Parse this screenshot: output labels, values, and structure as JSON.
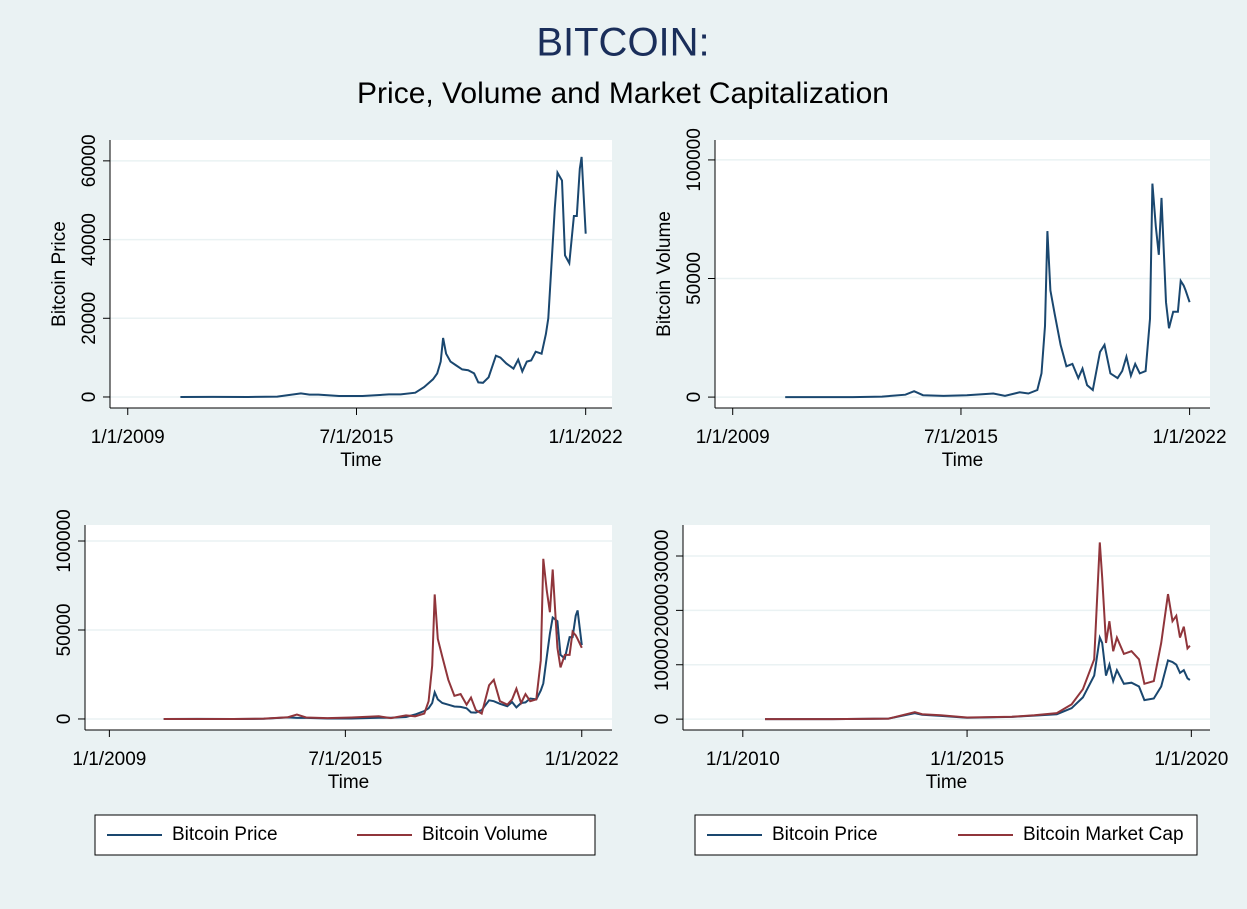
{
  "title": "BITCOIN:",
  "subtitle": "Price, Volume and Market Capitalization",
  "chart_data": [
    {
      "type": "line",
      "ylabel": "Bitcoin Price",
      "xlabel": "Time",
      "x": [
        "2010-07-01",
        "2011-06-01",
        "2012-06-01",
        "2013-04-01",
        "2013-12-01",
        "2014-03-01",
        "2014-06-01",
        "2015-01-01",
        "2015-09-01",
        "2016-06-01",
        "2016-10-01",
        "2017-03-01",
        "2017-06-01",
        "2017-09-01",
        "2017-10-15",
        "2017-11-20",
        "2017-12-15",
        "2018-01-15",
        "2018-03-01",
        "2018-05-01",
        "2018-07-01",
        "2018-09-01",
        "2018-11-01",
        "2018-12-15",
        "2019-02-01",
        "2019-04-01",
        "2019-06-15",
        "2019-08-01",
        "2019-10-01",
        "2019-12-15",
        "2020-02-01",
        "2020-03-15",
        "2020-05-01",
        "2020-06-15",
        "2020-08-01",
        "2020-10-01",
        "2020-11-15",
        "2020-12-10",
        "2021-01-15",
        "2021-02-15",
        "2021-03-15",
        "2021-05-01",
        "2021-06-01",
        "2021-07-15",
        "2021-09-01",
        "2021-10-01",
        "2021-11-01",
        "2021-11-20",
        "2022-01-01"
      ],
      "series": [
        {
          "color": "#1a476f",
          "values": [
            0,
            15,
            6,
            100,
            900,
            600,
            600,
            250,
            250,
            650,
            650,
            1100,
            2500,
            4500,
            6000,
            9000,
            15000,
            11000,
            9000,
            8000,
            7000,
            6800,
            6000,
            3700,
            3600,
            5000,
            10500,
            10000,
            8500,
            7200,
            9500,
            6500,
            9000,
            9300,
            11500,
            11000,
            16000,
            20000,
            35000,
            48000,
            57000,
            55000,
            36000,
            34000,
            46000,
            46000,
            58000,
            61000,
            41500
          ]
        }
      ],
      "xlim": [
        "2008-07-01",
        "2022-10-01"
      ],
      "xticks": [
        {
          "value": "2009-01-01",
          "label": "1/1/2009"
        },
        {
          "value": "2015-07-01",
          "label": "7/1/2015"
        },
        {
          "value": "2022-01-01",
          "label": "1/1/2022"
        }
      ],
      "ylim": [
        -2800,
        65300
      ],
      "yticks": [
        0,
        20000,
        40000,
        60000
      ],
      "grid": true
    },
    {
      "type": "line",
      "ylabel": "Bitcoin Volume",
      "xlabel": "Time",
      "x": [
        "2010-07-01",
        "2011-06-01",
        "2012-06-01",
        "2013-04-01",
        "2013-12-01",
        "2014-03-01",
        "2014-06-01",
        "2015-01-01",
        "2015-09-01",
        "2016-06-01",
        "2016-10-01",
        "2017-03-01",
        "2017-06-01",
        "2017-09-01",
        "2017-10-15",
        "2017-11-20",
        "2017-12-15",
        "2018-01-15",
        "2018-03-01",
        "2018-05-01",
        "2018-07-01",
        "2018-09-01",
        "2018-11-01",
        "2018-12-15",
        "2019-02-01",
        "2019-04-01",
        "2019-06-15",
        "2019-08-01",
        "2019-10-01",
        "2019-12-15",
        "2020-02-01",
        "2020-03-15",
        "2020-05-01",
        "2020-06-15",
        "2020-08-01",
        "2020-10-01",
        "2020-11-15",
        "2020-12-10",
        "2021-01-15",
        "2021-02-15",
        "2021-03-15",
        "2021-05-01",
        "2021-06-01",
        "2021-07-15",
        "2021-09-01",
        "2021-10-01",
        "2021-11-01",
        "2021-11-20",
        "2022-01-01"
      ],
      "series": [
        {
          "color": "#1a476f",
          "values": [
            0,
            0,
            0,
            200,
            1000,
            2500,
            800,
            500,
            800,
            1500,
            500,
            2000,
            1500,
            3000,
            10000,
            30000,
            70000,
            45000,
            35000,
            22000,
            13000,
            14000,
            8000,
            12000,
            5000,
            3000,
            19000,
            22000,
            10000,
            8000,
            11000,
            17000,
            9000,
            14000,
            10000,
            11000,
            33000,
            90000,
            72000,
            60000,
            84000,
            40000,
            29000,
            36000,
            36000,
            49000,
            47000,
            45000,
            40000
          ]
        }
      ],
      "xlim": [
        "2008-07-01",
        "2022-08-01"
      ],
      "xticks": [
        {
          "value": "2009-01-01",
          "label": "1/1/2009"
        },
        {
          "value": "2015-07-01",
          "label": "7/1/2015"
        },
        {
          "value": "2022-01-01",
          "label": "1/1/2022"
        }
      ],
      "ylim": [
        -4600,
        108400
      ],
      "yticks": [
        0,
        50000,
        100000
      ],
      "grid": true
    },
    {
      "type": "line",
      "xlabel": "Time",
      "legend": "bottom",
      "x": [
        "2010-07-01",
        "2011-06-01",
        "2012-06-01",
        "2013-04-01",
        "2013-12-01",
        "2014-03-01",
        "2014-06-01",
        "2015-01-01",
        "2015-09-01",
        "2016-06-01",
        "2016-10-01",
        "2017-03-01",
        "2017-06-01",
        "2017-09-01",
        "2017-10-15",
        "2017-11-20",
        "2017-12-15",
        "2018-01-15",
        "2018-03-01",
        "2018-05-01",
        "2018-07-01",
        "2018-09-01",
        "2018-11-01",
        "2018-12-15",
        "2019-02-01",
        "2019-04-01",
        "2019-06-15",
        "2019-08-01",
        "2019-10-01",
        "2019-12-15",
        "2020-02-01",
        "2020-03-15",
        "2020-05-01",
        "2020-06-15",
        "2020-08-01",
        "2020-10-01",
        "2020-11-15",
        "2020-12-10",
        "2021-01-15",
        "2021-02-15",
        "2021-03-15",
        "2021-05-01",
        "2021-06-01",
        "2021-07-15",
        "2021-09-01",
        "2021-10-01",
        "2021-11-01",
        "2021-11-20",
        "2022-01-01"
      ],
      "series": [
        {
          "name": "Bitcoin Price",
          "color": "#1a476f",
          "values": [
            0,
            15,
            6,
            100,
            900,
            600,
            600,
            250,
            250,
            650,
            650,
            1100,
            2500,
            4500,
            6000,
            9000,
            15000,
            11000,
            9000,
            8000,
            7000,
            6800,
            6000,
            3700,
            3600,
            5000,
            10500,
            10000,
            8500,
            7200,
            9500,
            6500,
            9000,
            9300,
            11500,
            11000,
            16000,
            20000,
            35000,
            48000,
            57000,
            55000,
            36000,
            34000,
            46000,
            46000,
            58000,
            61000,
            41500
          ]
        },
        {
          "name": "Bitcoin Volume",
          "color": "#90353b",
          "values": [
            0,
            0,
            0,
            200,
            1000,
            2500,
            800,
            500,
            800,
            1500,
            500,
            2000,
            1500,
            3000,
            10000,
            30000,
            70000,
            45000,
            35000,
            22000,
            13000,
            14000,
            8000,
            12000,
            5000,
            3000,
            19000,
            22000,
            10000,
            8000,
            11000,
            17000,
            9000,
            14000,
            10000,
            11000,
            33000,
            90000,
            72000,
            60000,
            84000,
            40000,
            29000,
            36000,
            36000,
            49000,
            47000,
            45000,
            40000
          ]
        }
      ],
      "xlim": [
        "2008-05-01",
        "2022-11-01"
      ],
      "xticks": [
        {
          "value": "2009-01-01",
          "label": "1/1/2009"
        },
        {
          "value": "2015-07-01",
          "label": "7/1/2015"
        },
        {
          "value": "2022-01-01",
          "label": "1/1/2022"
        }
      ],
      "ylim": [
        -6200,
        109000
      ],
      "yticks": [
        0,
        50000,
        100000
      ],
      "grid": true
    },
    {
      "type": "line",
      "xlabel": "Time",
      "legend": "bottom",
      "x": [
        "2010-07-01",
        "2012-01-01",
        "2013-04-01",
        "2013-11-01",
        "2014-01-01",
        "2014-06-01",
        "2015-01-01",
        "2016-01-01",
        "2016-07-01",
        "2017-01-01",
        "2017-05-01",
        "2017-08-01",
        "2017-11-01",
        "2017-12-17",
        "2018-01-05",
        "2018-02-05",
        "2018-03-05",
        "2018-04-05",
        "2018-05-05",
        "2018-07-01",
        "2018-09-01",
        "2018-11-01",
        "2018-12-15",
        "2019-03-01",
        "2019-05-01",
        "2019-06-25",
        "2019-08-01",
        "2019-09-01",
        "2019-10-01",
        "2019-11-01",
        "2019-12-01",
        "2019-12-20"
      ],
      "series": [
        {
          "name": "Bitcoin Price",
          "color": "#1a476f",
          "values": [
            0,
            5,
            100,
            1100,
            800,
            600,
            250,
            400,
            650,
            900,
            2000,
            4000,
            8000,
            15000,
            14000,
            8000,
            10000,
            7000,
            9000,
            6500,
            6700,
            6000,
            3500,
            3800,
            6000,
            10800,
            10500,
            10000,
            8500,
            9000,
            7500,
            7200
          ]
        },
        {
          "name": "Bitcoin Market Cap",
          "color": "#90353b",
          "values": [
            0,
            0,
            100,
            1300,
            900,
            700,
            300,
            450,
            700,
            1100,
            2700,
            5500,
            11000,
            32500,
            26000,
            14000,
            18000,
            12500,
            15000,
            12000,
            12500,
            11000,
            6500,
            7000,
            14000,
            23000,
            18000,
            19000,
            15000,
            17000,
            13000,
            13500
          ]
        }
      ],
      "xlim": [
        "2008-09-01",
        "2020-06-01"
      ],
      "xticks": [
        {
          "value": "2010-01-01",
          "label": "1/1/2010"
        },
        {
          "value": "2015-01-01",
          "label": "1/1/2015"
        },
        {
          "value": "2020-01-01",
          "label": "1/1/2020"
        }
      ],
      "ylim": [
        -2000,
        35700
      ],
      "yticks": [
        0,
        10000,
        20000,
        30000
      ],
      "grid": true
    }
  ]
}
